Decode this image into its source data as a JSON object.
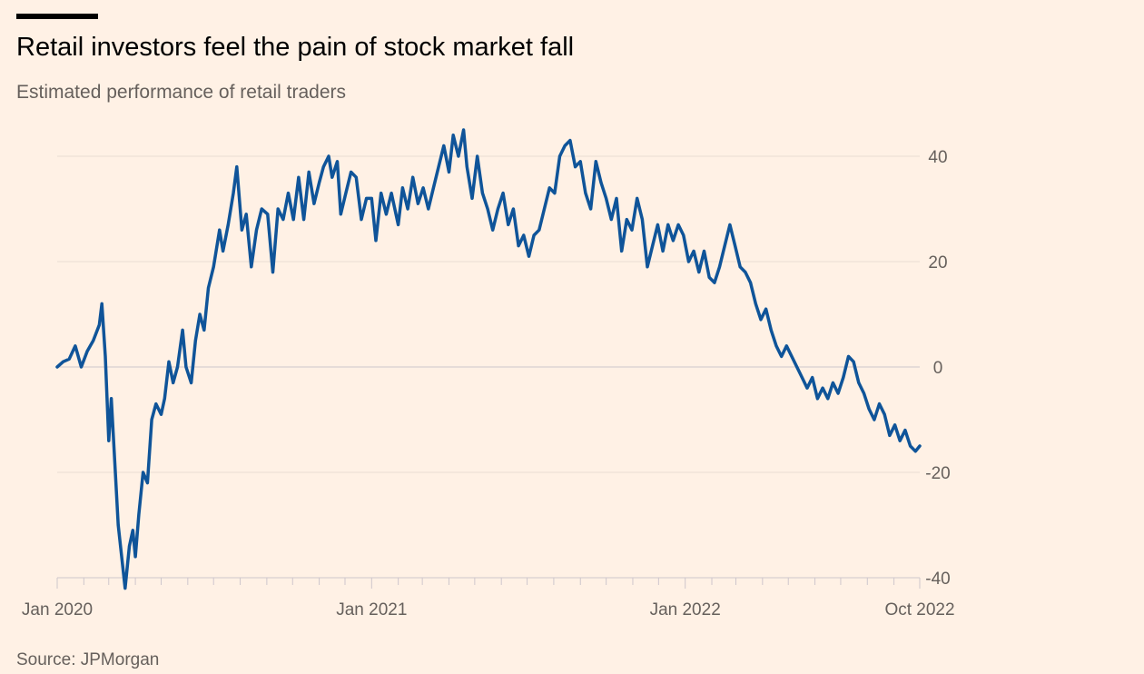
{
  "title": "Retail investors feel the pain of stock market fall",
  "subtitle": "Estimated performance of retail traders",
  "source": "Source: JPMorgan",
  "colors": {
    "background": "#fff1e5",
    "line": "#0f5499",
    "grid": "#e9ddd3",
    "zero_line": "#cec6cc",
    "text": "#66605c"
  },
  "chart_data": {
    "type": "line",
    "title": "Retail investors feel the pain of stock market fall",
    "subtitle": "Estimated performance of retail traders",
    "xlabel": "",
    "ylabel": "",
    "ylim": [
      -40,
      45
    ],
    "y_ticks": [
      40,
      20,
      0,
      -20,
      -40
    ],
    "y_tick_labels": [
      "40",
      "20",
      "0",
      "-20",
      "-40"
    ],
    "y_axis_position": "right",
    "x_range": [
      "2020-01",
      "2022-10"
    ],
    "x_tick_labels": [
      {
        "label": "Jan 2020",
        "date": "2020-01"
      },
      {
        "label": "Jan 2021",
        "date": "2021-01"
      },
      {
        "label": "Jan 2022",
        "date": "2022-01"
      },
      {
        "label": "Oct 2022",
        "date": "2022-10"
      }
    ],
    "grid": true,
    "legend": "none",
    "series": [
      {
        "points": [
          [
            "2020-01-01",
            0
          ],
          [
            "2020-01-08",
            1
          ],
          [
            "2020-01-15",
            1.5
          ],
          [
            "2020-01-22",
            4
          ],
          [
            "2020-01-29",
            0
          ],
          [
            "2020-02-05",
            3
          ],
          [
            "2020-02-12",
            5
          ],
          [
            "2020-02-19",
            8
          ],
          [
            "2020-02-22",
            12
          ],
          [
            "2020-02-26",
            2
          ],
          [
            "2020-03-01",
            -14
          ],
          [
            "2020-03-04",
            -6
          ],
          [
            "2020-03-08",
            -18
          ],
          [
            "2020-03-12",
            -30
          ],
          [
            "2020-03-16",
            -36
          ],
          [
            "2020-03-20",
            -42
          ],
          [
            "2020-03-25",
            -34
          ],
          [
            "2020-03-29",
            -31
          ],
          [
            "2020-04-01",
            -36
          ],
          [
            "2020-04-05",
            -28
          ],
          [
            "2020-04-10",
            -20
          ],
          [
            "2020-04-15",
            -22
          ],
          [
            "2020-04-20",
            -10
          ],
          [
            "2020-04-25",
            -7
          ],
          [
            "2020-05-01",
            -9
          ],
          [
            "2020-05-05",
            -6
          ],
          [
            "2020-05-10",
            1
          ],
          [
            "2020-05-15",
            -3
          ],
          [
            "2020-05-20",
            0
          ],
          [
            "2020-05-26",
            7
          ],
          [
            "2020-05-30",
            0
          ],
          [
            "2020-06-05",
            -3
          ],
          [
            "2020-06-10",
            5
          ],
          [
            "2020-06-15",
            10
          ],
          [
            "2020-06-20",
            7
          ],
          [
            "2020-06-25",
            15
          ],
          [
            "2020-07-01",
            19
          ],
          [
            "2020-07-08",
            26
          ],
          [
            "2020-07-12",
            22
          ],
          [
            "2020-07-18",
            27
          ],
          [
            "2020-07-24",
            33
          ],
          [
            "2020-07-28",
            38
          ],
          [
            "2020-08-03",
            26
          ],
          [
            "2020-08-08",
            29
          ],
          [
            "2020-08-14",
            19
          ],
          [
            "2020-08-20",
            26
          ],
          [
            "2020-08-26",
            30
          ],
          [
            "2020-09-02",
            29
          ],
          [
            "2020-09-08",
            18
          ],
          [
            "2020-09-14",
            30
          ],
          [
            "2020-09-20",
            28
          ],
          [
            "2020-09-26",
            33
          ],
          [
            "2020-10-02",
            28
          ],
          [
            "2020-10-08",
            36
          ],
          [
            "2020-10-14",
            28
          ],
          [
            "2020-10-20",
            37
          ],
          [
            "2020-10-26",
            31
          ],
          [
            "2020-11-01",
            35
          ],
          [
            "2020-11-06",
            38
          ],
          [
            "2020-11-12",
            40
          ],
          [
            "2020-11-16",
            36
          ],
          [
            "2020-11-22",
            39
          ],
          [
            "2020-11-26",
            29
          ],
          [
            "2020-12-02",
            33
          ],
          [
            "2020-12-08",
            37
          ],
          [
            "2020-12-14",
            36
          ],
          [
            "2020-12-20",
            28
          ],
          [
            "2020-12-26",
            32
          ],
          [
            "2021-01-01",
            32
          ],
          [
            "2021-01-06",
            24
          ],
          [
            "2021-01-12",
            33
          ],
          [
            "2021-01-18",
            29
          ],
          [
            "2021-01-24",
            33
          ],
          [
            "2021-02-01",
            27
          ],
          [
            "2021-02-06",
            34
          ],
          [
            "2021-02-12",
            30
          ],
          [
            "2021-02-18",
            36
          ],
          [
            "2021-02-24",
            31
          ],
          [
            "2021-03-02",
            34
          ],
          [
            "2021-03-08",
            30
          ],
          [
            "2021-03-14",
            34
          ],
          [
            "2021-03-20",
            38
          ],
          [
            "2021-03-26",
            42
          ],
          [
            "2021-04-01",
            37
          ],
          [
            "2021-04-06",
            44
          ],
          [
            "2021-04-12",
            40
          ],
          [
            "2021-04-18",
            45
          ],
          [
            "2021-04-22",
            38
          ],
          [
            "2021-04-28",
            32
          ],
          [
            "2021-05-04",
            40
          ],
          [
            "2021-05-10",
            33
          ],
          [
            "2021-05-16",
            30
          ],
          [
            "2021-05-22",
            26
          ],
          [
            "2021-05-28",
            30
          ],
          [
            "2021-06-03",
            33
          ],
          [
            "2021-06-09",
            27
          ],
          [
            "2021-06-15",
            30
          ],
          [
            "2021-06-21",
            23
          ],
          [
            "2021-06-27",
            25
          ],
          [
            "2021-07-03",
            21
          ],
          [
            "2021-07-09",
            25
          ],
          [
            "2021-07-15",
            26
          ],
          [
            "2021-07-21",
            30
          ],
          [
            "2021-07-27",
            34
          ],
          [
            "2021-08-02",
            33
          ],
          [
            "2021-08-08",
            40
          ],
          [
            "2021-08-14",
            42
          ],
          [
            "2021-08-20",
            43
          ],
          [
            "2021-08-26",
            38
          ],
          [
            "2021-09-01",
            39
          ],
          [
            "2021-09-07",
            33
          ],
          [
            "2021-09-13",
            30
          ],
          [
            "2021-09-19",
            39
          ],
          [
            "2021-09-25",
            35
          ],
          [
            "2021-10-01",
            32
          ],
          [
            "2021-10-07",
            28
          ],
          [
            "2021-10-13",
            32
          ],
          [
            "2021-10-19",
            22
          ],
          [
            "2021-10-25",
            28
          ],
          [
            "2021-10-31",
            26
          ],
          [
            "2021-11-06",
            32
          ],
          [
            "2021-11-12",
            28
          ],
          [
            "2021-11-18",
            19
          ],
          [
            "2021-11-24",
            23
          ],
          [
            "2021-11-30",
            27
          ],
          [
            "2021-12-06",
            22
          ],
          [
            "2021-12-12",
            27
          ],
          [
            "2021-12-18",
            24
          ],
          [
            "2021-12-24",
            27
          ],
          [
            "2021-12-30",
            25
          ],
          [
            "2022-01-05",
            20
          ],
          [
            "2022-01-11",
            22
          ],
          [
            "2022-01-17",
            18
          ],
          [
            "2022-01-23",
            22
          ],
          [
            "2022-01-29",
            17
          ],
          [
            "2022-02-04",
            16
          ],
          [
            "2022-02-10",
            19
          ],
          [
            "2022-02-16",
            23
          ],
          [
            "2022-02-22",
            27
          ],
          [
            "2022-02-28",
            23
          ],
          [
            "2022-03-06",
            19
          ],
          [
            "2022-03-12",
            18
          ],
          [
            "2022-03-18",
            16
          ],
          [
            "2022-03-24",
            12
          ],
          [
            "2022-03-30",
            9
          ],
          [
            "2022-04-05",
            11
          ],
          [
            "2022-04-11",
            7
          ],
          [
            "2022-04-17",
            4
          ],
          [
            "2022-04-23",
            2
          ],
          [
            "2022-04-29",
            4
          ],
          [
            "2022-05-05",
            2
          ],
          [
            "2022-05-11",
            0
          ],
          [
            "2022-05-17",
            -2
          ],
          [
            "2022-05-23",
            -4
          ],
          [
            "2022-05-29",
            -2
          ],
          [
            "2022-06-04",
            -6
          ],
          [
            "2022-06-10",
            -4
          ],
          [
            "2022-06-16",
            -6
          ],
          [
            "2022-06-22",
            -3
          ],
          [
            "2022-06-28",
            -5
          ],
          [
            "2022-07-04",
            -2
          ],
          [
            "2022-07-10",
            2
          ],
          [
            "2022-07-16",
            1
          ],
          [
            "2022-07-22",
            -3
          ],
          [
            "2022-07-28",
            -5
          ],
          [
            "2022-08-03",
            -8
          ],
          [
            "2022-08-09",
            -10
          ],
          [
            "2022-08-15",
            -7
          ],
          [
            "2022-08-21",
            -9
          ],
          [
            "2022-08-27",
            -13
          ],
          [
            "2022-09-02",
            -11
          ],
          [
            "2022-09-08",
            -14
          ],
          [
            "2022-09-14",
            -12
          ],
          [
            "2022-09-20",
            -15
          ],
          [
            "2022-09-26",
            -16
          ],
          [
            "2022-10-01",
            -15
          ]
        ]
      }
    ]
  }
}
